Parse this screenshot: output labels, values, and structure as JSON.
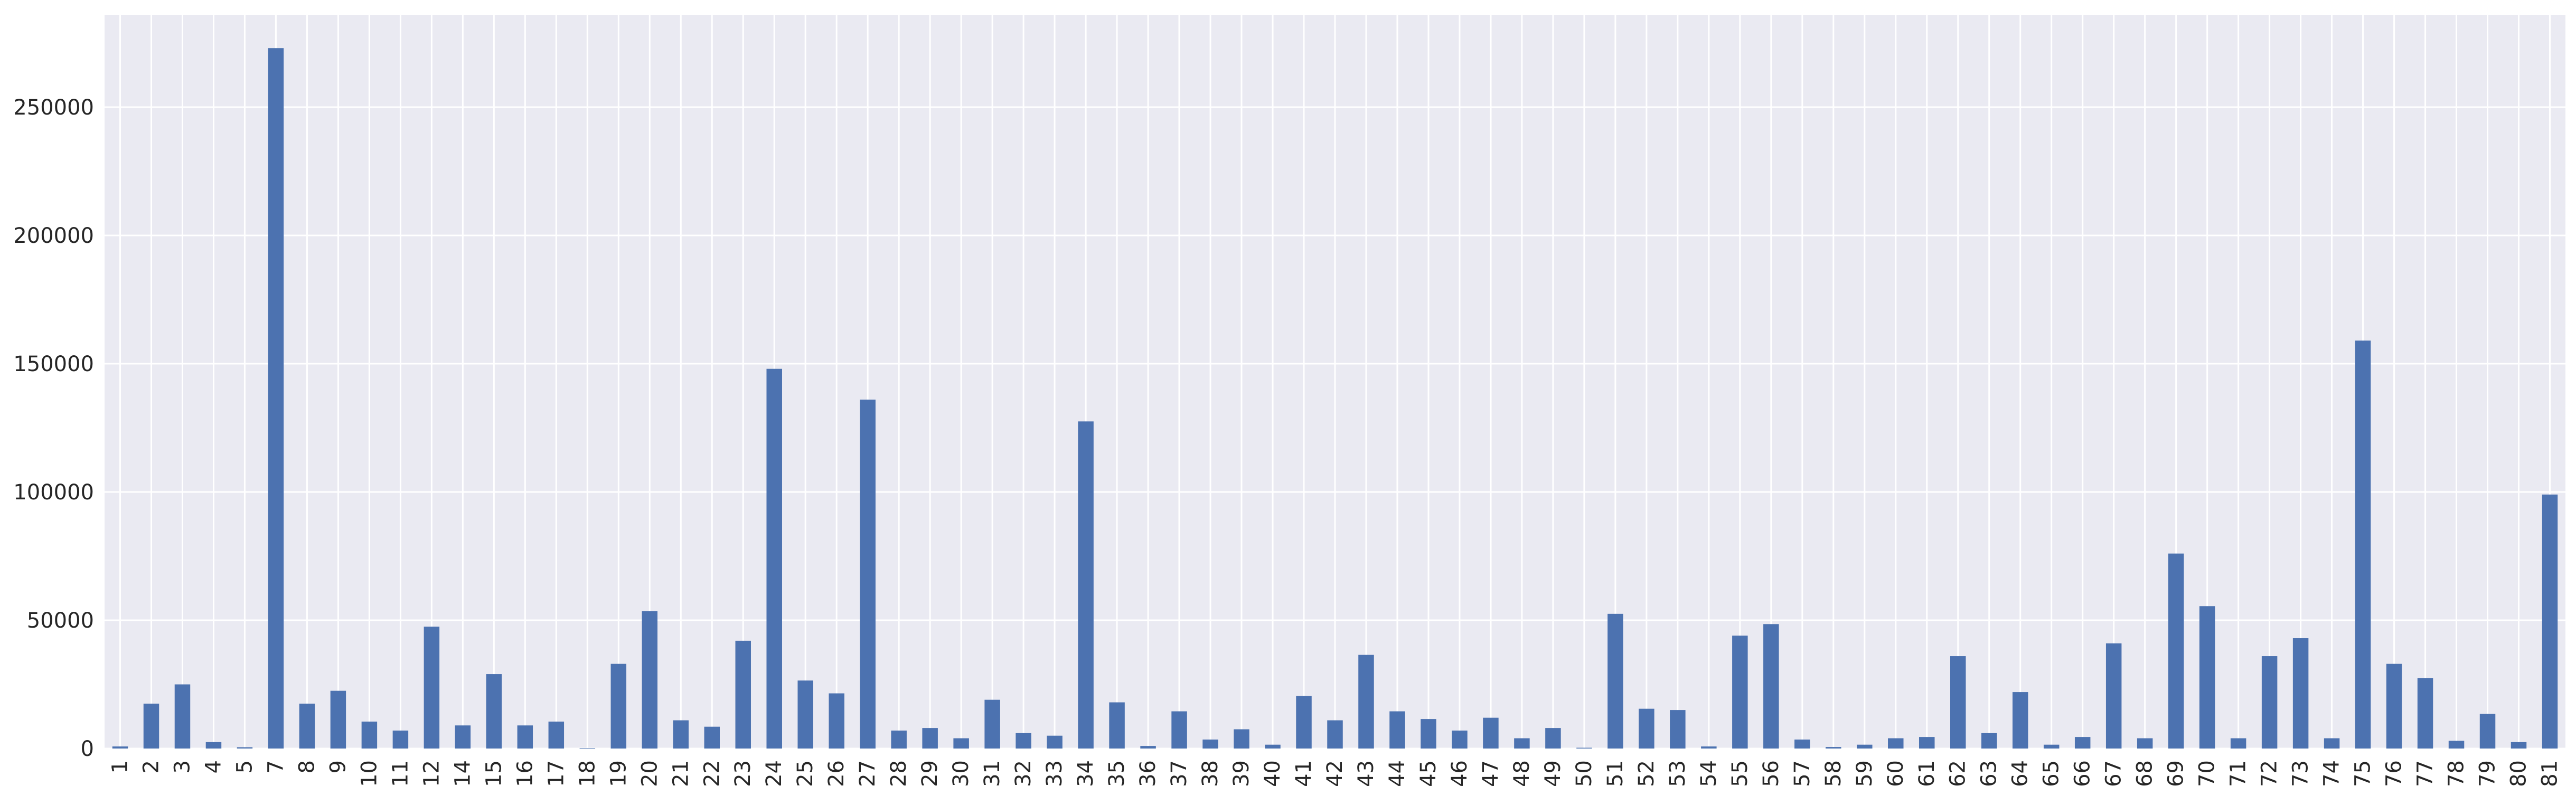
{
  "chart_data": {
    "type": "bar",
    "title": "",
    "xlabel": "",
    "ylabel": "",
    "ylim": [
      0,
      286000
    ],
    "yticks": [
      0,
      50000,
      100000,
      150000,
      200000,
      250000
    ],
    "grid": true,
    "legend": "none",
    "colors": {
      "bar": "#4c72b0",
      "background": "#eaeaf2",
      "grid": "#ffffff"
    },
    "categories": [
      "1",
      "2",
      "3",
      "4",
      "5",
      "7",
      "8",
      "9",
      "10",
      "11",
      "12",
      "14",
      "15",
      "16",
      "17",
      "18",
      "19",
      "20",
      "21",
      "22",
      "23",
      "24",
      "25",
      "26",
      "27",
      "28",
      "29",
      "30",
      "31",
      "32",
      "33",
      "34",
      "35",
      "36",
      "37",
      "38",
      "39",
      "40",
      "41",
      "42",
      "43",
      "44",
      "45",
      "46",
      "47",
      "48",
      "49",
      "50",
      "51",
      "52",
      "53",
      "54",
      "55",
      "56",
      "57",
      "58",
      "59",
      "60",
      "61",
      "62",
      "63",
      "64",
      "65",
      "66",
      "67",
      "68",
      "69",
      "70",
      "71",
      "72",
      "73",
      "74",
      "75",
      "76",
      "77",
      "78",
      "79",
      "80",
      "81"
    ],
    "values": [
      800,
      17500,
      25000,
      2500,
      500,
      273000,
      17500,
      22500,
      10500,
      7000,
      47500,
      9000,
      29000,
      9000,
      10500,
      200,
      33000,
      53500,
      11000,
      8500,
      42000,
      148000,
      26500,
      21500,
      136000,
      7000,
      8000,
      4000,
      19000,
      6000,
      5000,
      127500,
      18000,
      1000,
      14500,
      3500,
      7500,
      1500,
      20500,
      11000,
      36500,
      14500,
      11500,
      7000,
      12000,
      4000,
      8000,
      300,
      52500,
      15500,
      15000,
      800,
      44000,
      48500,
      3500,
      600,
      1500,
      4000,
      4500,
      36000,
      6000,
      22000,
      1500,
      4500,
      41000,
      4000,
      76000,
      55500,
      4000,
      36000,
      43000,
      4000,
      159000,
      33000,
      27500,
      3000,
      13500,
      2500,
      99000
    ]
  }
}
